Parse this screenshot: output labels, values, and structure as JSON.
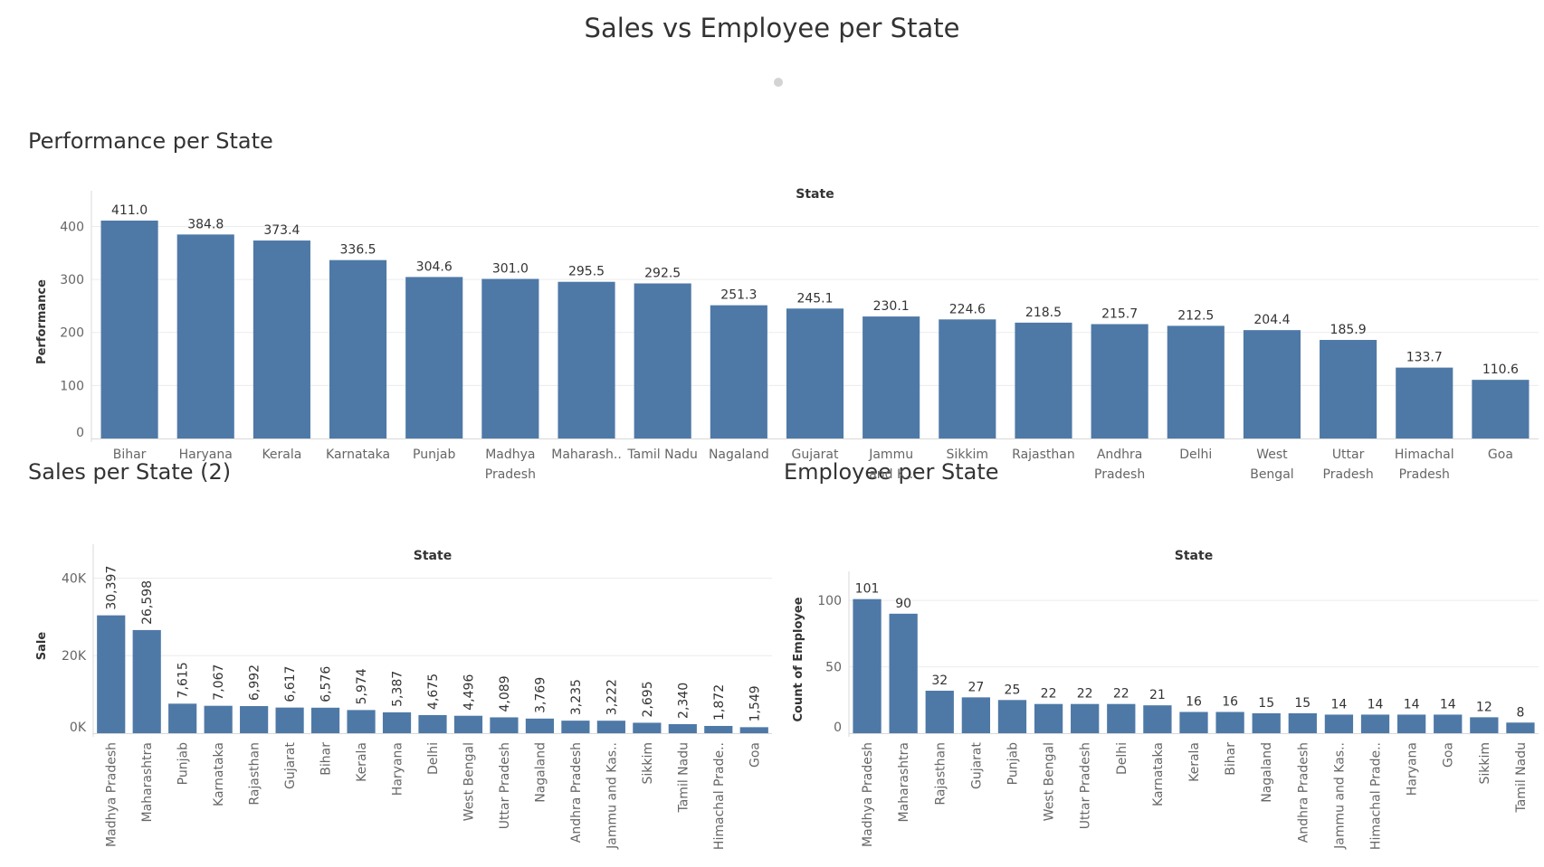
{
  "dashboard": {
    "title": "Sales vs Employee per State"
  },
  "colors": {
    "bar": "#4e79a7",
    "grid": "#ececec",
    "axis_line": "#d9d9d9",
    "text": "#333333",
    "tick_text": "#666666"
  },
  "sheets": {
    "performance_title": "Performance per State",
    "sales_title": "Sales per State (2)",
    "employee_title": "Employee per State"
  },
  "chart_data": [
    {
      "type": "bar",
      "title": "Performance per State",
      "xlabel": "State",
      "ylabel": "Performance",
      "ylim": [
        0,
        440
      ],
      "yticks": [
        0,
        100,
        200,
        300,
        400
      ],
      "ytick_labels": [
        "0",
        "100",
        "200",
        "300",
        "400"
      ],
      "categories": [
        "Bihar",
        "Haryana",
        "Kerala",
        "Karnataka",
        "Punjab",
        "Madhya Pradesh",
        "Maharash..",
        "Tamil Nadu",
        "Nagaland",
        "Gujarat",
        "Jammu and K..",
        "Sikkim",
        "Rajasthan",
        "Andhra Pradesh",
        "Delhi",
        "West Bengal",
        "Uttar Pradesh",
        "Himachal Pradesh",
        "Goa"
      ],
      "category_lines": [
        [
          "Bihar"
        ],
        [
          "Haryana"
        ],
        [
          "Kerala"
        ],
        [
          "Karnataka"
        ],
        [
          "Punjab"
        ],
        [
          "Madhya",
          "Pradesh"
        ],
        [
          "Maharash.."
        ],
        [
          "Tamil Nadu"
        ],
        [
          "Nagaland"
        ],
        [
          "Gujarat"
        ],
        [
          "Jammu",
          "and K.."
        ],
        [
          "Sikkim"
        ],
        [
          "Rajasthan"
        ],
        [
          "Andhra",
          "Pradesh"
        ],
        [
          "Delhi"
        ],
        [
          "West",
          "Bengal"
        ],
        [
          "Uttar",
          "Pradesh"
        ],
        [
          "Himachal",
          "Pradesh"
        ],
        [
          "Goa"
        ]
      ],
      "values": [
        411.0,
        384.8,
        373.4,
        336.5,
        304.6,
        301.0,
        295.5,
        292.5,
        251.3,
        245.1,
        230.1,
        224.6,
        218.5,
        215.7,
        212.5,
        204.4,
        185.9,
        133.7,
        110.6
      ],
      "data_labels": [
        "411.0",
        "384.8",
        "373.4",
        "336.5",
        "304.6",
        "301.0",
        "295.5",
        "292.5",
        "251.3",
        "245.1",
        "230.1",
        "224.6",
        "218.5",
        "215.7",
        "212.5",
        "204.4",
        "185.9",
        "133.7",
        "110.6"
      ],
      "grid": true
    },
    {
      "type": "bar",
      "title": "Sales per State (2)",
      "xlabel": "State",
      "ylabel": "Sale",
      "ylim": [
        0,
        45000
      ],
      "yticks": [
        0,
        20000,
        40000
      ],
      "ytick_labels": [
        "0K",
        "20K",
        "40K"
      ],
      "categories": [
        "Madhya Pradesh",
        "Maharashtra",
        "Punjab",
        "Karnataka",
        "Rajasthan",
        "Gujarat",
        "Bihar",
        "Kerala",
        "Haryana",
        "Delhi",
        "West Bengal",
        "Uttar Pradesh",
        "Nagaland",
        "Andhra Pradesh",
        "Jammu and Kas..",
        "Sikkim",
        "Tamil Nadu",
        "Himachal Prade..",
        "Goa"
      ],
      "values": [
        30397,
        26598,
        7615,
        7067,
        6992,
        6617,
        6576,
        5974,
        5387,
        4675,
        4496,
        4089,
        3769,
        3235,
        3222,
        2695,
        2340,
        1872,
        1549
      ],
      "data_labels": [
        "30,397",
        "26,598",
        "7,615",
        "7,067",
        "6,992",
        "6,617",
        "6,576",
        "5,974",
        "5,387",
        "4,675",
        "4,496",
        "4,089",
        "3,769",
        "3,235",
        "3,222",
        "2,695",
        "2,340",
        "1,872",
        "1,549"
      ],
      "grid": true
    },
    {
      "type": "bar",
      "title": "Employee per State",
      "xlabel": "State",
      "ylabel": "Count of Employee",
      "ylim": [
        0,
        111
      ],
      "yticks": [
        0,
        50,
        100
      ],
      "ytick_labels": [
        "0",
        "50",
        "100"
      ],
      "categories": [
        "Madhya Pradesh",
        "Maharashtra",
        "Rajasthan",
        "Gujarat",
        "Punjab",
        "West Bengal",
        "Uttar Pradesh",
        "Delhi",
        "Karnataka",
        "Kerala",
        "Bihar",
        "Nagaland",
        "Andhra Pradesh",
        "Jammu and Kas..",
        "Himachal Prade..",
        "Haryana",
        "Goa",
        "Sikkim",
        "Tamil Nadu"
      ],
      "values": [
        101,
        90,
        32,
        27,
        25,
        22,
        22,
        22,
        21,
        16,
        16,
        15,
        15,
        14,
        14,
        14,
        14,
        12,
        8
      ],
      "data_labels": [
        "101",
        "90",
        "32",
        "27",
        "25",
        "22",
        "22",
        "22",
        "21",
        "16",
        "16",
        "15",
        "15",
        "14",
        "14",
        "14",
        "14",
        "12",
        "8"
      ],
      "grid": true
    }
  ]
}
